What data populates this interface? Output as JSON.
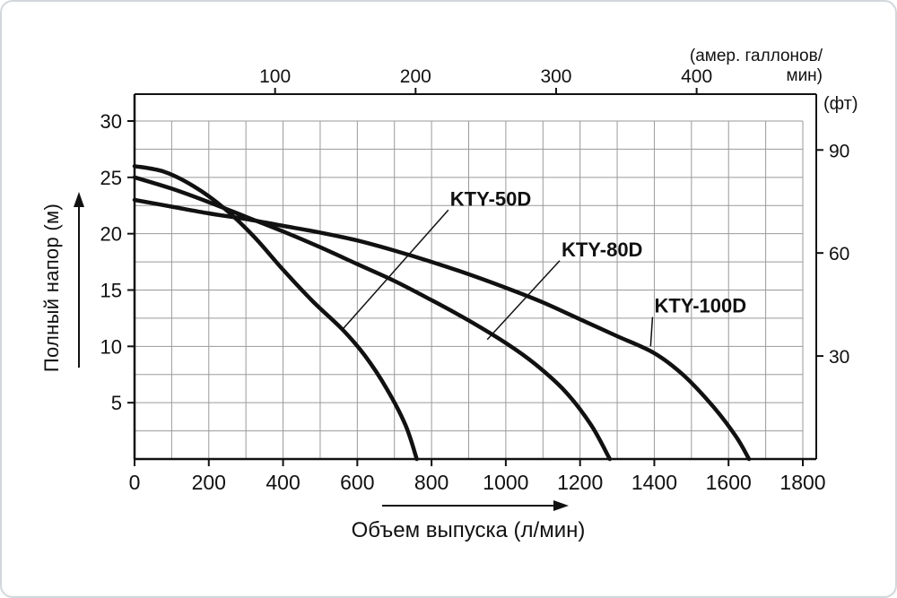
{
  "chart_data": {
    "type": "line",
    "title": "",
    "xlabel": "Объем выпуска (л/мин)",
    "ylabel": "Полный напор (м)",
    "x_axis": {
      "label": "Объем выпуска (л/мин)",
      "min": 0,
      "max": 1800,
      "grid_step": 100,
      "ticks": [
        0,
        200,
        400,
        600,
        800,
        1000,
        1200,
        1400,
        1600,
        1800
      ]
    },
    "y_axis": {
      "label": "Полный напор (м)",
      "min": 0,
      "max": 30,
      "grid_step": 2.5,
      "ticks": [
        5,
        10,
        15,
        20,
        25,
        30
      ]
    },
    "top_axis": {
      "unit": "амер. галлонов/мин",
      "unit_lines": [
        "(амер. галлонов/",
        "мин)"
      ],
      "ticks": [
        100,
        200,
        300,
        400
      ],
      "liters_per_unit": 3.785
    },
    "right_axis": {
      "unit": "(фт)",
      "ticks": [
        30,
        60,
        90
      ],
      "meters_per_unit": 0.3048
    },
    "series": [
      {
        "name": "KTY-50D",
        "points": [
          [
            0,
            26
          ],
          [
            80,
            25.5
          ],
          [
            160,
            24.2
          ],
          [
            240,
            22.3
          ],
          [
            320,
            19.8
          ],
          [
            400,
            16.8
          ],
          [
            480,
            14
          ],
          [
            560,
            11.5
          ],
          [
            620,
            9.2
          ],
          [
            680,
            6.2
          ],
          [
            730,
            3
          ],
          [
            760,
            0
          ]
        ]
      },
      {
        "name": "KTY-80D",
        "points": [
          [
            0,
            25
          ],
          [
            100,
            24
          ],
          [
            200,
            22.8
          ],
          [
            300,
            21.5
          ],
          [
            400,
            20.2
          ],
          [
            500,
            18.8
          ],
          [
            600,
            17.3
          ],
          [
            700,
            15.8
          ],
          [
            800,
            14.1
          ],
          [
            900,
            12.3
          ],
          [
            1000,
            10.3
          ],
          [
            1080,
            8.4
          ],
          [
            1160,
            6
          ],
          [
            1230,
            3
          ],
          [
            1280,
            0
          ]
        ]
      },
      {
        "name": "KTY-100D",
        "points": [
          [
            0,
            23
          ],
          [
            100,
            22.4
          ],
          [
            200,
            21.8
          ],
          [
            300,
            21.3
          ],
          [
            400,
            20.7
          ],
          [
            500,
            20.1
          ],
          [
            600,
            19.4
          ],
          [
            700,
            18.5
          ],
          [
            800,
            17.5
          ],
          [
            900,
            16.4
          ],
          [
            1000,
            15.2
          ],
          [
            1100,
            13.9
          ],
          [
            1200,
            12.4
          ],
          [
            1300,
            10.9
          ],
          [
            1400,
            9.4
          ],
          [
            1480,
            7.4
          ],
          [
            1560,
            4.6
          ],
          [
            1620,
            2
          ],
          [
            1655,
            0
          ]
        ]
      }
    ],
    "annotations": [
      {
        "label": "KTY-50D",
        "label_pos": [
          850,
          22.5
        ],
        "point": [
          560,
          11.5
        ]
      },
      {
        "label": "KTY-80D",
        "label_pos": [
          1150,
          18
        ],
        "point": [
          950,
          10.6
        ]
      },
      {
        "label": "KTY-100D",
        "label_pos": [
          1400,
          13
        ],
        "point": [
          1390,
          10
        ]
      }
    ]
  },
  "colors": {
    "curve": "#111111",
    "grid": "#9a9a9a",
    "axis": "#111111",
    "text": "#111111",
    "border": "#d3d7db"
  }
}
